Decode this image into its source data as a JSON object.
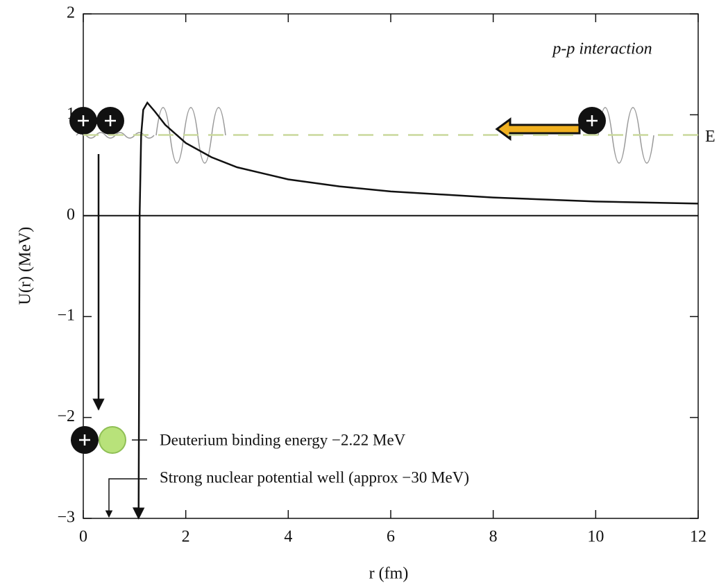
{
  "chart_data": {
    "type": "line",
    "title": "p-p interaction",
    "x_label": "r (fm)",
    "y_label": "U(r) (MeV)",
    "x": [
      1.08,
      1.1,
      1.13,
      1.17,
      1.25,
      1.4,
      1.6,
      2,
      2.5,
      3,
      4,
      5,
      6,
      7,
      8,
      9,
      10,
      11,
      12
    ],
    "values": [
      -3,
      0,
      0.8,
      1.05,
      1.12,
      1.03,
      0.9,
      0.72,
      0.58,
      0.48,
      0.36,
      0.29,
      0.24,
      0.21,
      0.18,
      0.16,
      0.14,
      0.13,
      0.12
    ],
    "color": "#111",
    "energy_level": 0.8,
    "energy_label": "E",
    "energy_color": "#c9d89c",
    "annotations": [
      "Deuterium binding energy −2.22 MeV",
      "Strong nuclear potential well (approx −30 MeV)"
    ],
    "xlim": [
      0,
      12
    ],
    "xticks": [
      0,
      2,
      4,
      6,
      8,
      10,
      12
    ],
    "ylim": [
      -3,
      2
    ],
    "yticks": [
      {
        "value": -3,
        "label": "−3"
      },
      {
        "value": -2,
        "label": "−2"
      },
      {
        "value": -1,
        "label": "−1"
      },
      0,
      1,
      2
    ]
  }
}
